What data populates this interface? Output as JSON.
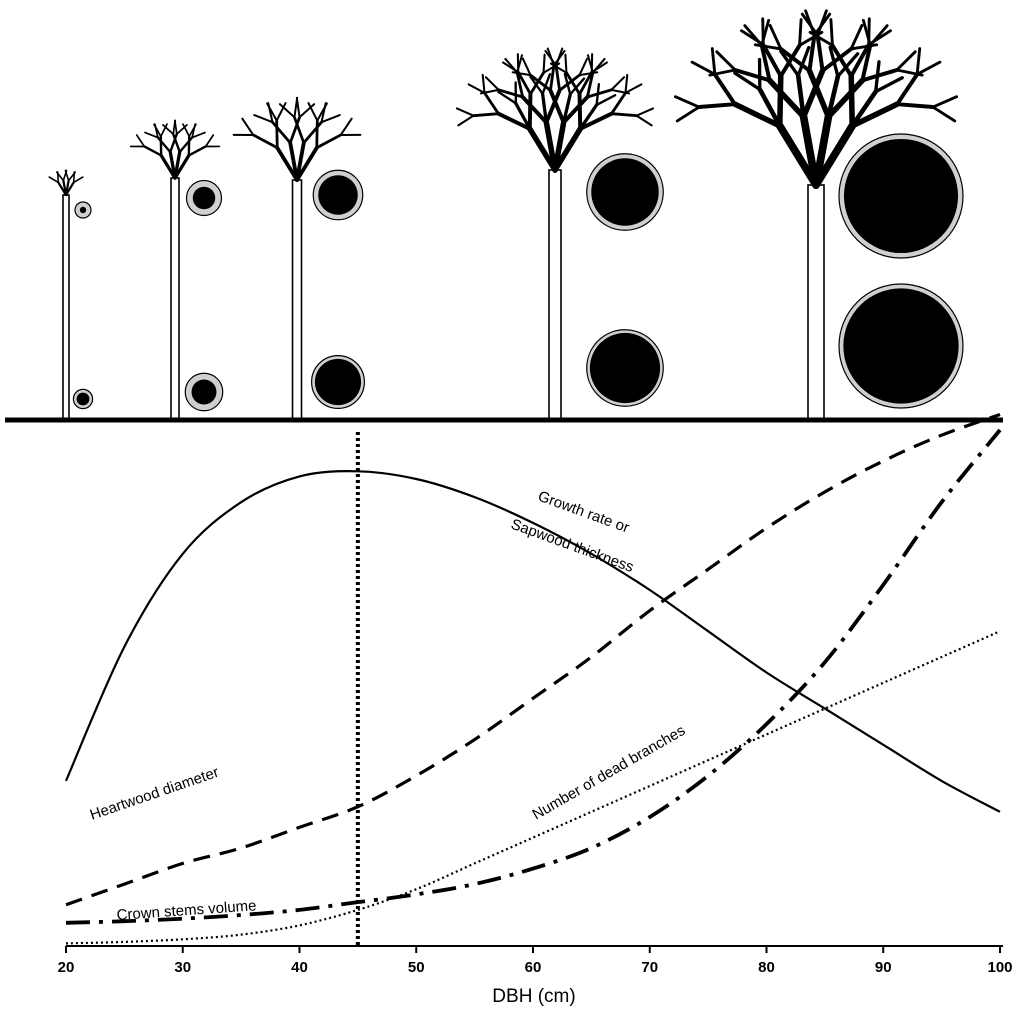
{
  "chart_data": {
    "type": "line",
    "xlabel": "DBH (cm)",
    "x_ticks": [
      20,
      30,
      40,
      50,
      60,
      70,
      80,
      90,
      100
    ],
    "xlim": [
      20,
      100
    ],
    "marker_x": 45,
    "series": [
      {
        "name": "Growth rate or Sapwood thickness",
        "style": "solid",
        "x": [
          20,
          25,
          30,
          35,
          40,
          45,
          50,
          55,
          60,
          65,
          70,
          75,
          80,
          85,
          90,
          95,
          100
        ],
        "y": [
          0.32,
          0.58,
          0.76,
          0.86,
          0.91,
          0.92,
          0.905,
          0.87,
          0.82,
          0.76,
          0.69,
          0.61,
          0.53,
          0.46,
          0.39,
          0.32,
          0.26
        ]
      },
      {
        "name": "Heartwood diameter",
        "style": "dashed",
        "x": [
          20,
          25,
          30,
          35,
          40,
          45,
          50,
          55,
          60,
          65,
          70,
          75,
          80,
          85,
          90,
          95,
          100
        ],
        "y": [
          0.08,
          0.12,
          0.16,
          0.19,
          0.23,
          0.27,
          0.33,
          0.4,
          0.48,
          0.56,
          0.65,
          0.73,
          0.81,
          0.88,
          0.94,
          0.99,
          1.03
        ]
      },
      {
        "name": "Number of dead branches",
        "style": "dotted",
        "x": [
          20,
          25,
          30,
          35,
          40,
          45,
          50,
          55,
          60,
          65,
          70,
          75,
          80,
          85,
          90,
          95,
          100
        ],
        "y": [
          0.005,
          0.008,
          0.013,
          0.022,
          0.04,
          0.07,
          0.11,
          0.16,
          0.21,
          0.26,
          0.31,
          0.36,
          0.41,
          0.46,
          0.51,
          0.56,
          0.61
        ]
      },
      {
        "name": "Crown stems volume",
        "style": "dashdot",
        "x": [
          20,
          25,
          30,
          35,
          40,
          45,
          50,
          55,
          60,
          65,
          70,
          75,
          80,
          85,
          90,
          95,
          100
        ],
        "y": [
          0.045,
          0.048,
          0.053,
          0.06,
          0.07,
          0.085,
          0.1,
          0.12,
          0.15,
          0.19,
          0.25,
          0.33,
          0.43,
          0.55,
          0.7,
          0.86,
          1.0
        ]
      }
    ],
    "label_texts": {
      "growth_line1": "Growth rate or",
      "growth_line2": "Sapwood thickness",
      "heartwood": "Heartwood diameter",
      "dead_branches": "Number of dead branches",
      "crown": "Crown stems volume"
    }
  },
  "trees": [
    {
      "dbh": 20,
      "crown_size": "small",
      "upper_section": {
        "sapwood": 0.5,
        "heartwood": 0.2
      },
      "lower_section": {
        "sapwood": 0.6,
        "heartwood": 0.4
      }
    },
    {
      "dbh": 30,
      "crown_size": "medium",
      "upper_section": {
        "sapwood": 0.7,
        "heartwood": 0.45
      },
      "lower_section": {
        "sapwood": 0.75,
        "heartwood": 0.5
      }
    },
    {
      "dbh": 40,
      "crown_size": "wide",
      "upper_section": {
        "sapwood": 0.75,
        "heartwood": 0.6
      },
      "lower_section": {
        "sapwood": 0.8,
        "heartwood": 0.7
      }
    },
    {
      "dbh": 60,
      "crown_size": "large",
      "upper_section": {
        "sapwood": 0.85,
        "heartwood": 0.75
      },
      "lower_section": {
        "sapwood": 0.85,
        "heartwood": 0.78
      }
    },
    {
      "dbh": 90,
      "crown_size": "very-large",
      "upper_section": {
        "sapwood": 1.0,
        "heartwood": 0.92
      },
      "lower_section": {
        "sapwood": 1.0,
        "heartwood": 0.93
      }
    }
  ],
  "colors": {
    "ink": "#000000",
    "sapwood": "#d0d0d0",
    "heartwood": "#000000",
    "background": "#ffffff"
  }
}
